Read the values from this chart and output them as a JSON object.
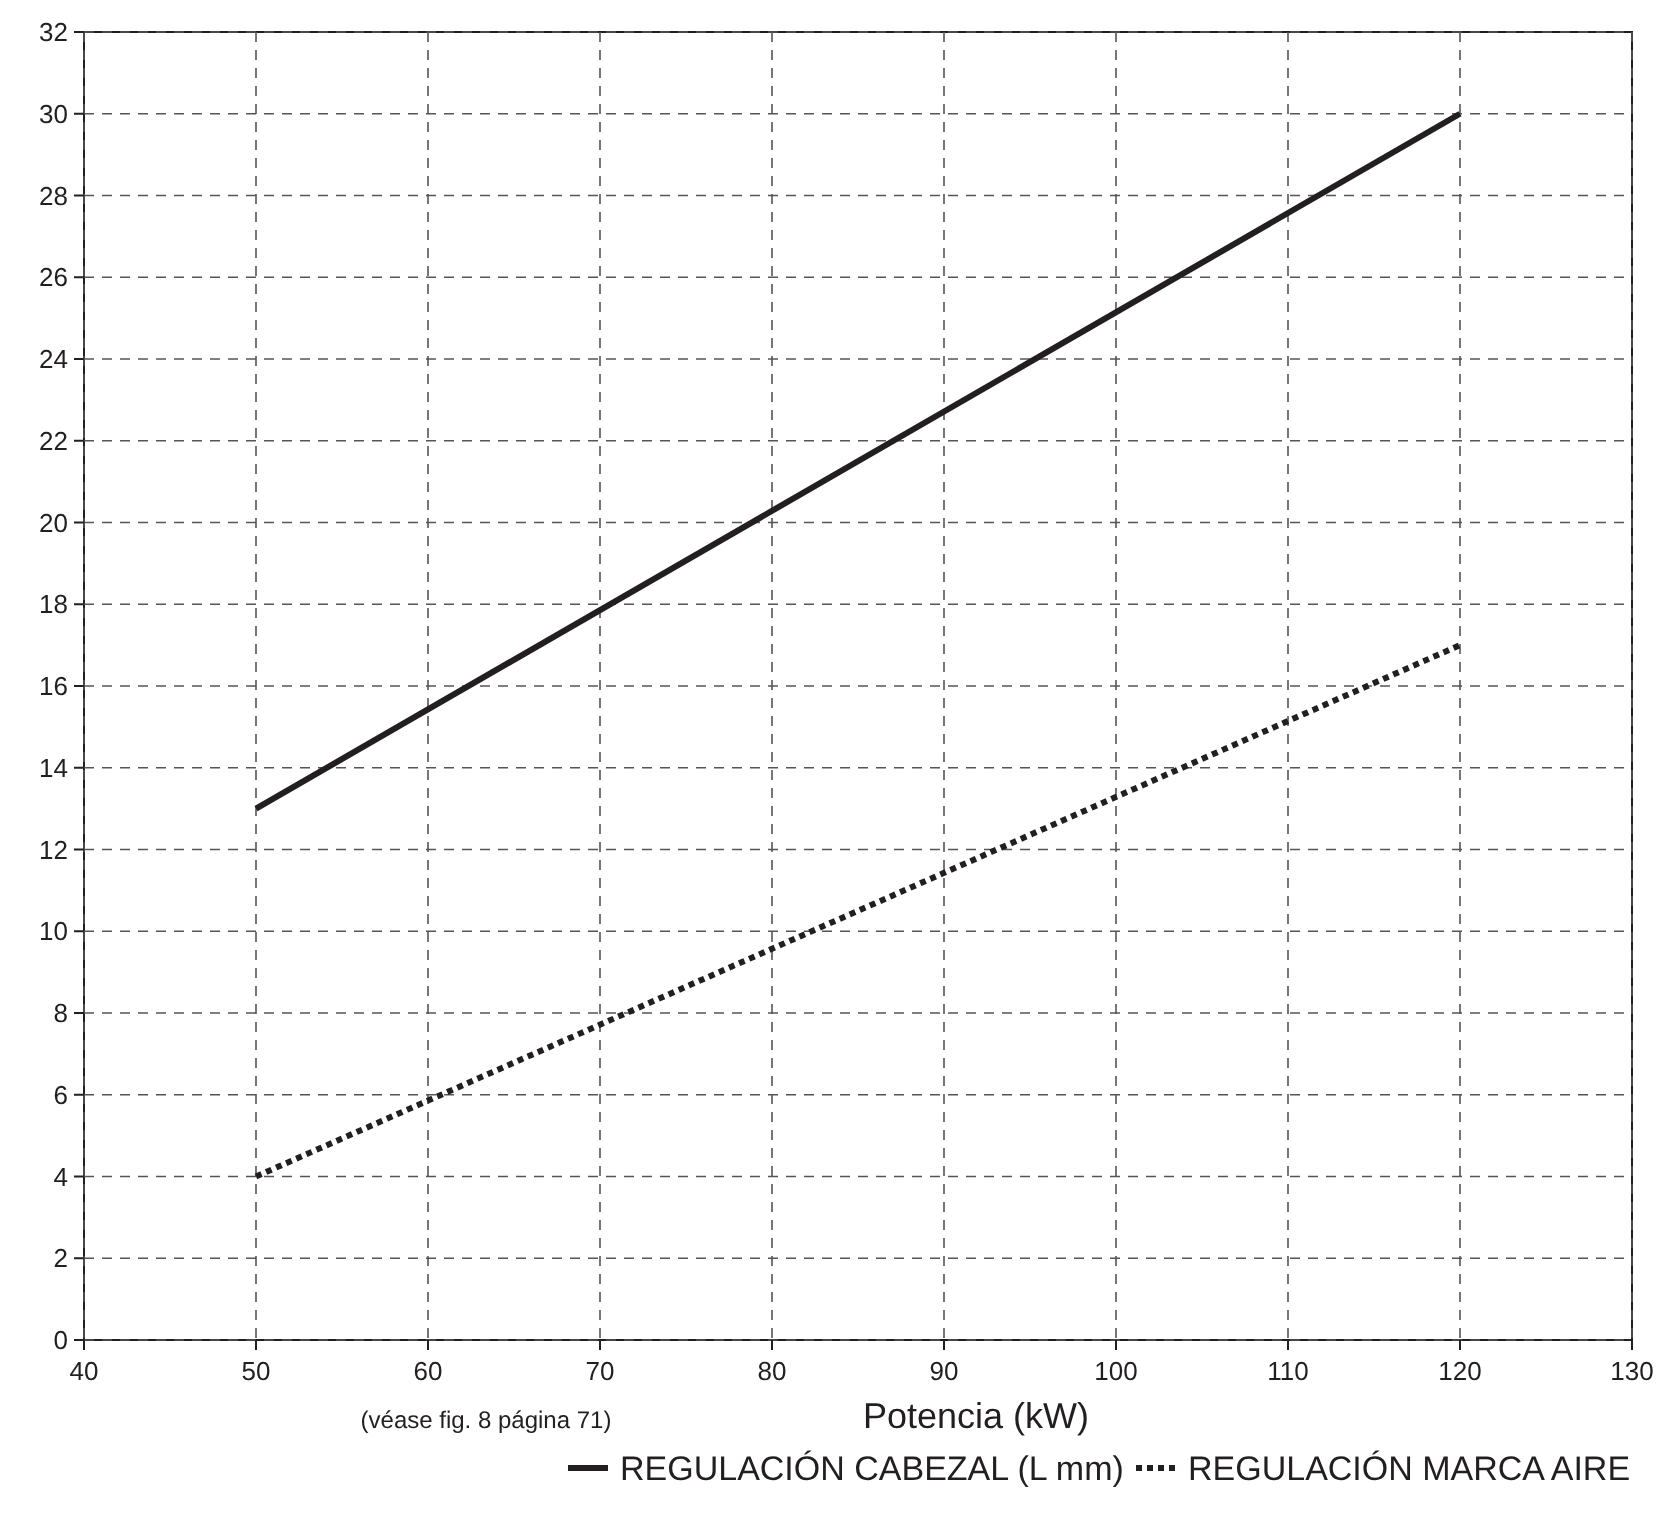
{
  "chart_data": {
    "type": "line",
    "xlabel": "Potencia (kW)",
    "annotations": [
      "(véase fig. 8 página 71)"
    ],
    "x": [
      50,
      120
    ],
    "series": [
      {
        "name": "REGULACIÓN CABEZAL (L mm)",
        "color": "#231f20",
        "values": [
          13,
          30
        ],
        "line_style": "solid"
      },
      {
        "name": "REGULACIÓN MARCA AIRE",
        "color": "#231f20",
        "values": [
          4,
          17
        ],
        "line_style": "dotted"
      }
    ],
    "xlim": [
      40,
      130
    ],
    "xticks": [
      40,
      50,
      60,
      70,
      80,
      90,
      100,
      110,
      120,
      130
    ],
    "ylim": [
      0,
      32
    ],
    "yticks": [
      0,
      2,
      4,
      6,
      8,
      10,
      12,
      14,
      16,
      18,
      20,
      22,
      24,
      26,
      28,
      30,
      32
    ],
    "grid": true,
    "legend": "bottom"
  }
}
